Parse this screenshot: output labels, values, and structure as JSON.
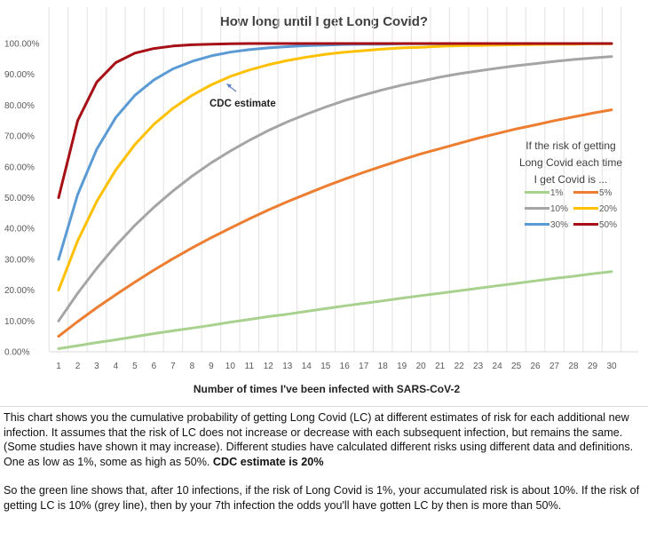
{
  "chart_data": {
    "type": "line",
    "title": "How long until I get Long Covid?",
    "xlabel": "Number of times I've been infected with SARS-CoV-2",
    "ylabel": "",
    "x": [
      1,
      2,
      3,
      4,
      5,
      6,
      7,
      8,
      9,
      10,
      11,
      12,
      13,
      14,
      15,
      16,
      17,
      18,
      19,
      20,
      21,
      22,
      23,
      24,
      25,
      26,
      27,
      28,
      29,
      30
    ],
    "xlim": [
      1,
      30
    ],
    "ylim": [
      0,
      100
    ],
    "y_ticks": [
      "0.00%",
      "10.00%",
      "20.00%",
      "30.00%",
      "40.00%",
      "50.00%",
      "60.00%",
      "70.00%",
      "80.00%",
      "90.00%",
      "100.00%"
    ],
    "grid": "vertical",
    "legend_title": "If the risk of getting Long Covid each time I get Covid is ...",
    "legend_position": "right",
    "annotation": "CDC estimate",
    "series": [
      {
        "name": "1%",
        "color": "#a9d18e",
        "risk": 0.01,
        "values": [
          1.0,
          2.0,
          3.0,
          3.9,
          4.9,
          5.9,
          6.8,
          7.7,
          8.6,
          9.6,
          10.5,
          11.4,
          12.2,
          13.1,
          14.0,
          14.9,
          15.7,
          16.5,
          17.4,
          18.2,
          19.0,
          19.8,
          20.6,
          21.4,
          22.2,
          23.0,
          23.8,
          24.5,
          25.3,
          26.0
        ]
      },
      {
        "name": "5%",
        "color": "#ed7d31",
        "risk": 0.05,
        "values": [
          5.0,
          9.8,
          14.3,
          18.5,
          22.6,
          26.5,
          30.2,
          33.7,
          37.0,
          40.1,
          43.1,
          46.0,
          48.7,
          51.2,
          53.7,
          56.0,
          58.2,
          60.3,
          62.3,
          64.2,
          65.9,
          67.6,
          69.3,
          70.8,
          72.3,
          73.6,
          75.0,
          76.2,
          77.4,
          78.5
        ]
      },
      {
        "name": "10%",
        "color": "#a5a5a5",
        "risk": 0.1,
        "values": [
          10.0,
          19.0,
          27.1,
          34.4,
          41.0,
          46.9,
          52.2,
          57.0,
          61.3,
          65.1,
          68.6,
          71.8,
          74.6,
          77.1,
          79.4,
          81.5,
          83.3,
          85.0,
          86.5,
          87.8,
          89.1,
          90.2,
          91.1,
          92.0,
          92.8,
          93.5,
          94.2,
          94.8,
          95.3,
          95.8
        ]
      },
      {
        "name": "20%",
        "color": "#ffc000",
        "risk": 0.2,
        "values": [
          20.0,
          36.0,
          48.8,
          59.0,
          67.2,
          73.8,
          79.0,
          83.2,
          86.6,
          89.3,
          91.4,
          93.1,
          94.5,
          95.6,
          96.5,
          97.2,
          97.7,
          98.2,
          98.6,
          98.8,
          99.1,
          99.3,
          99.4,
          99.5,
          99.6,
          99.7,
          99.8,
          99.8,
          99.9,
          99.9
        ]
      },
      {
        "name": "30%",
        "color": "#5b9bd5",
        "risk": 0.3,
        "values": [
          30.0,
          51.0,
          65.7,
          76.0,
          83.2,
          88.2,
          91.8,
          94.2,
          96.0,
          97.2,
          98.0,
          98.6,
          99.0,
          99.3,
          99.5,
          99.7,
          99.8,
          99.8,
          99.9,
          99.9,
          99.9,
          100.0,
          100.0,
          100.0,
          100.0,
          100.0,
          100.0,
          100.0,
          100.0,
          100.0
        ]
      },
      {
        "name": "50%",
        "color": "#a50f15",
        "risk": 0.5,
        "values": [
          50.0,
          75.0,
          87.5,
          93.8,
          96.9,
          98.4,
          99.2,
          99.6,
          99.8,
          99.9,
          100.0,
          100.0,
          100.0,
          100.0,
          100.0,
          100.0,
          100.0,
          100.0,
          100.0,
          100.0,
          100.0,
          100.0,
          100.0,
          100.0,
          100.0,
          100.0,
          100.0,
          100.0,
          100.0,
          100.0
        ]
      }
    ]
  },
  "description": {
    "p1": "This chart shows you the cumulative probability of getting Long Covid (LC) at different estimates of risk for each additional new infection. It assumes that the risk of LC does not increase or decrease with each subsequent infection, but remains the same. (Some studies have shown it may increase). Different studies have calculated different risks using different data and definitions. One as low as 1%, some as high as 50%.",
    "p1_bold": "CDC estimate is 20%",
    "p2": "So the green line shows that, after 10 infections, if the risk of Long Covid is 1%, your accumulated risk is about 10%. If the risk of getting LC is 10% (grey line), then by your 7th infection the odds you'll have gotten LC by then is more than 50%."
  }
}
